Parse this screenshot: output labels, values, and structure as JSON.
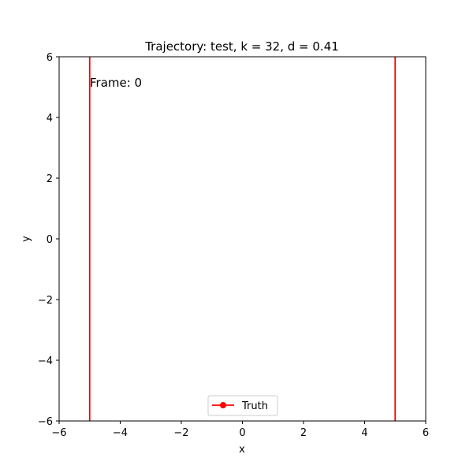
{
  "chart_data": {
    "type": "line",
    "title": "Trajectory: test, k = 32, d = 0.41",
    "xlabel": "x",
    "ylabel": "y",
    "xlim": [
      -6,
      6
    ],
    "ylim": [
      -6,
      6
    ],
    "xticks": [
      -6,
      -4,
      -2,
      0,
      2,
      4,
      6
    ],
    "yticks": [
      -6,
      -4,
      -2,
      0,
      2,
      4,
      6
    ],
    "xtick_labels": [
      "−6",
      "−4",
      "−2",
      "0",
      "2",
      "4",
      "6"
    ],
    "ytick_labels": [
      "−6",
      "−4",
      "−2",
      "0",
      "2",
      "4",
      "6"
    ],
    "grid": false,
    "legend": {
      "position": "lower-center",
      "entries": [
        "Truth"
      ]
    },
    "annotation": "Frame: 0",
    "series": [
      {
        "name": "Truth",
        "color": "#ff0000",
        "marker": "circle",
        "segments": [
          {
            "x": [
              -5.0,
              -5.0
            ],
            "y": [
              -6,
              6
            ]
          },
          {
            "x": [
              5.0,
              5.0
            ],
            "y": [
              -6,
              6
            ]
          }
        ]
      }
    ]
  }
}
